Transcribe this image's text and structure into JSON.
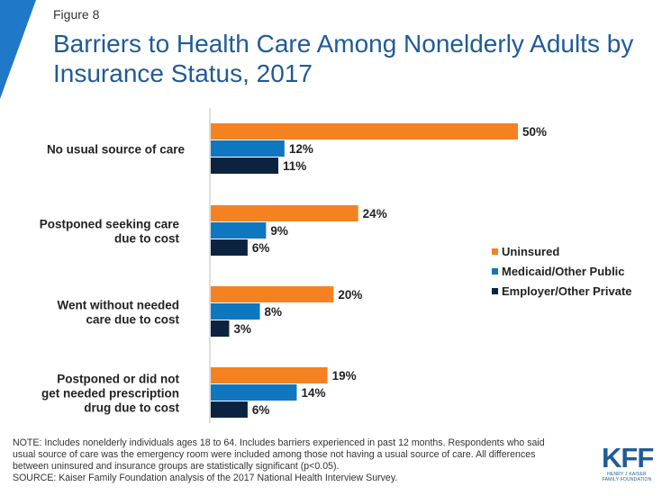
{
  "figure_label": "Figure 8",
  "title": "Barriers to Health Care Among Nonelderly Adults by Insurance Status, 2017",
  "colors": {
    "uninsured": "#f58220",
    "medicaid": "#0f77bf",
    "employer": "#0c2340",
    "title": "#1f5b97",
    "corner": "#1f78c8"
  },
  "chart_data": {
    "type": "bar",
    "orientation": "horizontal",
    "categories": [
      [
        "No usual source of care"
      ],
      [
        "Postponed seeking care",
        "due to cost"
      ],
      [
        "Went without needed",
        "care due to cost"
      ],
      [
        "Postponed or did not",
        "get needed prescription",
        "drug due to cost"
      ]
    ],
    "series": [
      {
        "name": "Uninsured",
        "values": [
          50,
          24,
          20,
          19
        ],
        "color": "#f58220"
      },
      {
        "name": "Medicaid/Other Public",
        "values": [
          12,
          9,
          8,
          14
        ],
        "color": "#0f77bf"
      },
      {
        "name": "Employer/Other Private",
        "values": [
          11,
          6,
          3,
          6
        ],
        "color": "#0c2340"
      }
    ],
    "value_suffix": "%",
    "xlim": [
      0,
      50
    ],
    "legend_position": "right",
    "grid": false
  },
  "notes": [
    "NOTE: Includes nonelderly individuals ages 18 to 64. Includes barriers experienced in past 12 months. Respondents who said",
    "usual source of care was the emergency room were included among those not having a usual source of care. All differences",
    "between uninsured and insurance groups are statistically significant (p<0.05).",
    "SOURCE: Kaiser Family Foundation analysis of the 2017 National Health Interview Survey."
  ],
  "logo": {
    "mark": "KFF",
    "subtitle_lines": [
      "HENRY J KAISER",
      "FAMILY FOUNDATION"
    ]
  }
}
